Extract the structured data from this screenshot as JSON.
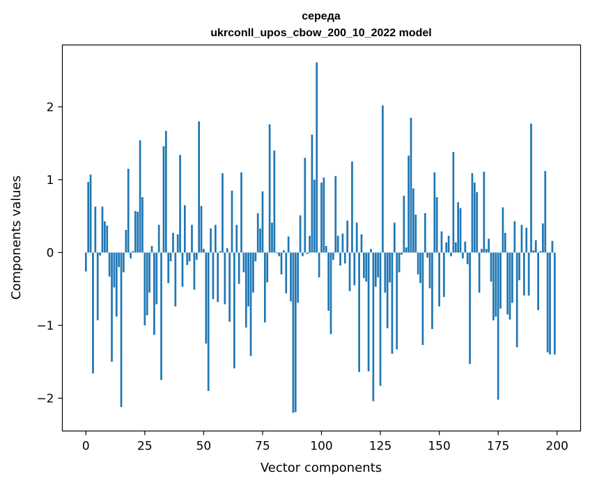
{
  "chart_data": {
    "type": "bar",
    "title_line1": "середа",
    "title_line2": "ukrconll_upos_cbow_200_10_2022 model",
    "xlabel": "Vector components",
    "ylabel": "Components values",
    "xlim": [
      -10,
      210
    ],
    "ylim": [
      -2.45,
      2.85
    ],
    "xticks": [
      0,
      25,
      50,
      75,
      100,
      125,
      150,
      175,
      200
    ],
    "yticks": [
      -2,
      -1,
      0,
      1,
      2
    ],
    "ytick_labels": [
      "−2",
      "−1",
      "0",
      "1",
      "2"
    ],
    "bar_color": "#1f77b4",
    "values": [
      -0.26,
      0.97,
      1.07,
      -1.66,
      0.63,
      -0.93,
      -0.04,
      0.63,
      0.43,
      0.37,
      -0.33,
      -1.5,
      -0.48,
      -0.88,
      -0.2,
      -2.12,
      -0.27,
      0.31,
      1.15,
      -0.08,
      0.02,
      0.57,
      0.56,
      1.54,
      0.76,
      -1.0,
      -0.86,
      -0.55,
      0.09,
      -1.13,
      -0.71,
      0.38,
      -1.75,
      1.46,
      1.67,
      -0.42,
      -0.12,
      0.27,
      -0.74,
      0.25,
      1.34,
      -0.47,
      0.65,
      -0.17,
      -0.12,
      0.38,
      -0.51,
      -0.1,
      1.8,
      0.64,
      0.05,
      -1.25,
      -1.9,
      0.33,
      -0.64,
      0.38,
      -0.68,
      0.02,
      1.09,
      -0.71,
      0.06,
      -0.95,
      0.85,
      -1.59,
      0.38,
      -0.43,
      1.1,
      -0.27,
      -1.03,
      -0.74,
      -1.42,
      -0.55,
      -0.12,
      0.54,
      0.33,
      0.84,
      -0.96,
      -0.41,
      1.76,
      0.41,
      1.4,
      -0.01,
      -0.05,
      -0.3,
      0.03,
      -0.56,
      0.22,
      -0.67,
      -2.2,
      -2.19,
      -0.69,
      0.51,
      -0.05,
      1.3,
      -0.02,
      0.23,
      1.62,
      1.0,
      2.61,
      -0.34,
      0.96,
      1.03,
      0.09,
      -0.8,
      -1.12,
      -0.1,
      1.05,
      0.23,
      -0.18,
      0.26,
      -0.15,
      0.44,
      -0.53,
      1.25,
      -0.45,
      0.41,
      -1.64,
      0.25,
      -0.35,
      -0.4,
      -1.63,
      0.05,
      -2.04,
      -0.47,
      -0.34,
      -1.83,
      2.02,
      -0.55,
      -1.04,
      -0.41,
      -1.39,
      0.41,
      -1.33,
      -0.27,
      -0.03,
      0.78,
      0.07,
      1.33,
      1.85,
      0.88,
      0.52,
      -0.3,
      -0.42,
      -1.27,
      0.54,
      -0.07,
      -0.49,
      -1.05,
      1.1,
      0.76,
      -0.74,
      0.29,
      -0.61,
      0.14,
      0.23,
      -0.05,
      1.38,
      0.14,
      0.69,
      0.61,
      -0.08,
      0.15,
      -0.16,
      -1.53,
      1.09,
      0.96,
      0.83,
      -0.55,
      0.05,
      1.11,
      0.05,
      0.19,
      -0.4,
      -0.93,
      -0.88,
      -2.02,
      -0.77,
      0.62,
      0.27,
      -0.85,
      -0.92,
      -0.69,
      0.43,
      -1.3,
      -0.38,
      0.38,
      -0.59,
      0.34,
      -0.59,
      1.77,
      0.03,
      0.17,
      -0.79,
      0.02,
      0.4,
      1.12,
      -1.37,
      -1.4,
      0.16,
      -1.4
    ]
  }
}
